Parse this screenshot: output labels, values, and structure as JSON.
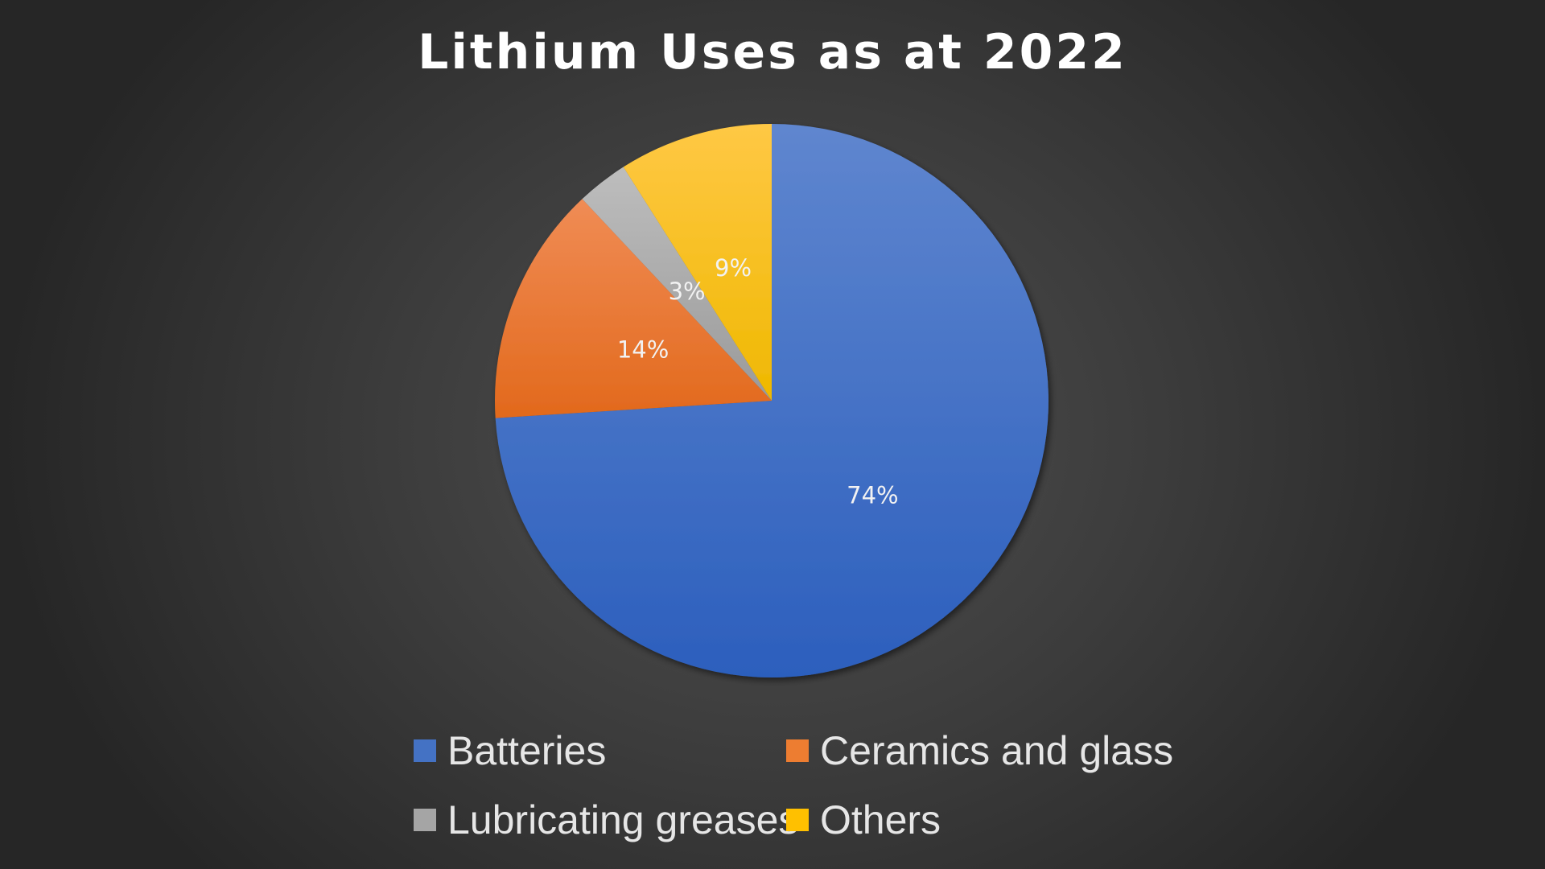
{
  "chart_data": {
    "type": "pie",
    "title": "Lithium Uses as at 2022",
    "categories": [
      "Batteries",
      "Ceramics and glass",
      "Lubricating greases",
      "Others"
    ],
    "values": [
      74,
      14,
      3,
      9
    ],
    "data_labels": [
      "74%",
      "14%",
      "3%",
      "9%"
    ],
    "colors": [
      "#4472c4",
      "#ed7d31",
      "#a5a5a5",
      "#ffc000"
    ],
    "legend_position": "bottom"
  }
}
